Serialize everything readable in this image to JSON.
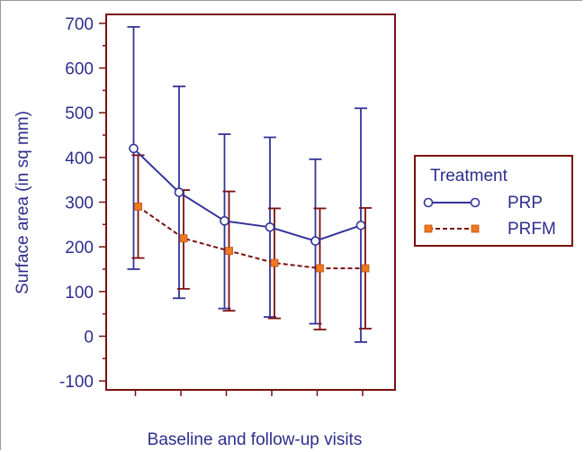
{
  "chart_data": {
    "type": "line",
    "xlabel": "Baseline and follow-up visits",
    "ylabel": "Surface area (in sq mm)",
    "ylim": [
      -120,
      720
    ],
    "y_ticks": [
      -100,
      0,
      100,
      200,
      300,
      400,
      500,
      600,
      700
    ],
    "x": [
      1,
      2,
      3,
      4,
      5,
      6
    ],
    "grid": false,
    "legend": {
      "title": "Treatment",
      "placement": "right"
    },
    "series": [
      {
        "name": "PRP",
        "color": "#34349a",
        "line_style": "solid",
        "marker": "open-circle",
        "values": [
          420,
          322,
          258,
          244,
          213,
          248
        ],
        "error_low": [
          150,
          85,
          62,
          43,
          28,
          -13
        ],
        "error_high": [
          692,
          559,
          452,
          445,
          396,
          510
        ]
      },
      {
        "name": "PRFM",
        "color": "#7a1010",
        "marker_color": "#f07820",
        "line_style": "dashed",
        "marker": "square",
        "values": [
          290,
          219,
          191,
          164,
          152,
          152
        ],
        "error_low": [
          175,
          106,
          57,
          40,
          15,
          17
        ],
        "error_high": [
          405,
          327,
          324,
          286,
          286,
          287
        ]
      }
    ]
  }
}
